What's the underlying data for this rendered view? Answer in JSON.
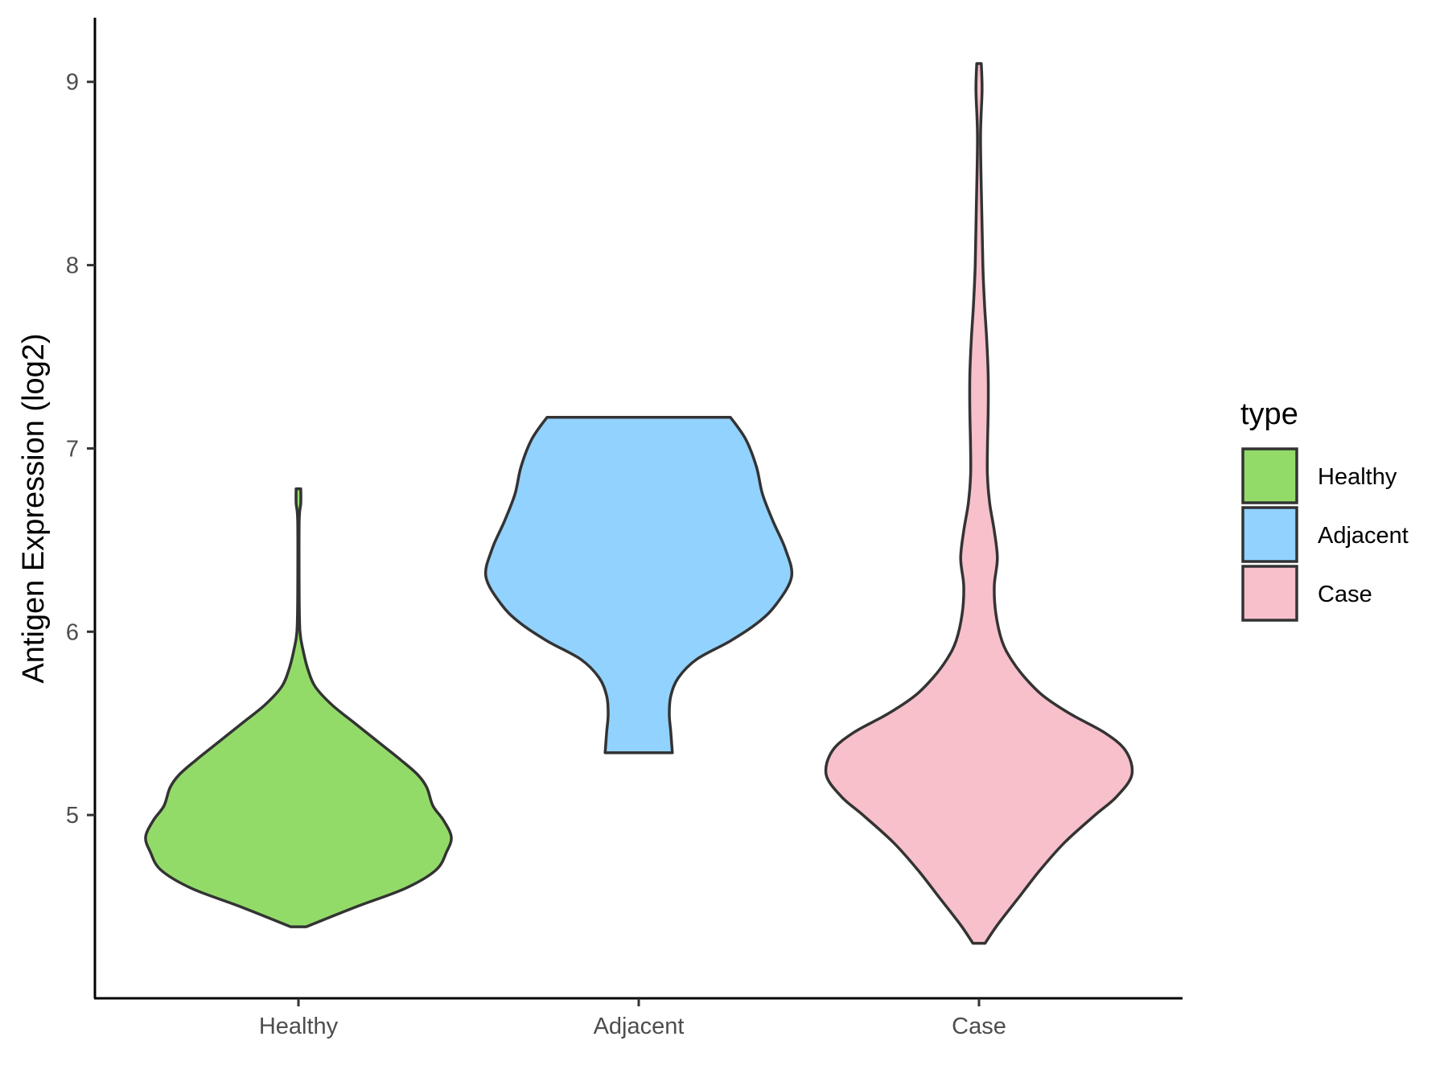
{
  "chart_data": {
    "type": "violin",
    "title": "",
    "xlabel": "",
    "ylabel": "Antigen Expression (log2)",
    "categories": [
      "Healthy",
      "Adjacent",
      "Case"
    ],
    "ylim": [
      4.0,
      9.35
    ],
    "yticks": [
      5,
      6,
      7,
      8,
      9
    ],
    "grid": false,
    "legend": {
      "title": "type",
      "position": "right",
      "entries": [
        {
          "label": "Healthy",
          "color": "#93DB69"
        },
        {
          "label": "Adjacent",
          "color": "#92D2FF"
        },
        {
          "label": "Case",
          "color": "#F7C0CB"
        }
      ]
    },
    "series": [
      {
        "category": "Healthy",
        "color": "#93DB69",
        "min": 4.39,
        "max": 6.78,
        "profile": [
          [
            4.39,
            0.05
          ],
          [
            4.5,
            0.38
          ],
          [
            4.6,
            0.7
          ],
          [
            4.7,
            0.9
          ],
          [
            4.8,
            0.97
          ],
          [
            4.88,
            1.0
          ],
          [
            4.97,
            0.95
          ],
          [
            5.05,
            0.88
          ],
          [
            5.15,
            0.84
          ],
          [
            5.22,
            0.78
          ],
          [
            5.3,
            0.67
          ],
          [
            5.4,
            0.52
          ],
          [
            5.5,
            0.37
          ],
          [
            5.6,
            0.22
          ],
          [
            5.7,
            0.11
          ],
          [
            5.8,
            0.06
          ],
          [
            5.9,
            0.03
          ],
          [
            6.0,
            0.01
          ],
          [
            6.2,
            0.005
          ],
          [
            6.6,
            0.005
          ],
          [
            6.7,
            0.015
          ],
          [
            6.78,
            0.015
          ]
        ]
      },
      {
        "category": "Adjacent",
        "color": "#92D2FF",
        "min": 5.34,
        "max": 7.17,
        "profile": [
          [
            5.34,
            0.22
          ],
          [
            5.45,
            0.21
          ],
          [
            5.55,
            0.2
          ],
          [
            5.65,
            0.21
          ],
          [
            5.75,
            0.26
          ],
          [
            5.85,
            0.38
          ],
          [
            5.95,
            0.6
          ],
          [
            6.05,
            0.78
          ],
          [
            6.15,
            0.9
          ],
          [
            6.3,
            1.0
          ],
          [
            6.45,
            0.96
          ],
          [
            6.6,
            0.88
          ],
          [
            6.75,
            0.81
          ],
          [
            6.9,
            0.77
          ],
          [
            7.05,
            0.7
          ],
          [
            7.17,
            0.6
          ]
        ]
      },
      {
        "category": "Case",
        "color": "#F7C0CB",
        "min": 4.3,
        "max": 9.1,
        "profile": [
          [
            4.3,
            0.04
          ],
          [
            4.4,
            0.12
          ],
          [
            4.55,
            0.26
          ],
          [
            4.7,
            0.4
          ],
          [
            4.85,
            0.56
          ],
          [
            5.0,
            0.76
          ],
          [
            5.1,
            0.9
          ],
          [
            5.22,
            1.0
          ],
          [
            5.35,
            0.96
          ],
          [
            5.45,
            0.82
          ],
          [
            5.55,
            0.6
          ],
          [
            5.65,
            0.42
          ],
          [
            5.75,
            0.3
          ],
          [
            5.85,
            0.21
          ],
          [
            5.95,
            0.15
          ],
          [
            6.1,
            0.11
          ],
          [
            6.25,
            0.1
          ],
          [
            6.4,
            0.12
          ],
          [
            6.55,
            0.1
          ],
          [
            6.7,
            0.07
          ],
          [
            6.85,
            0.055
          ],
          [
            7.0,
            0.055
          ],
          [
            7.2,
            0.06
          ],
          [
            7.4,
            0.06
          ],
          [
            7.6,
            0.05
          ],
          [
            7.8,
            0.035
          ],
          [
            8.0,
            0.025
          ],
          [
            8.3,
            0.018
          ],
          [
            8.7,
            0.01
          ],
          [
            8.95,
            0.02
          ],
          [
            9.1,
            0.015
          ]
        ]
      }
    ]
  }
}
